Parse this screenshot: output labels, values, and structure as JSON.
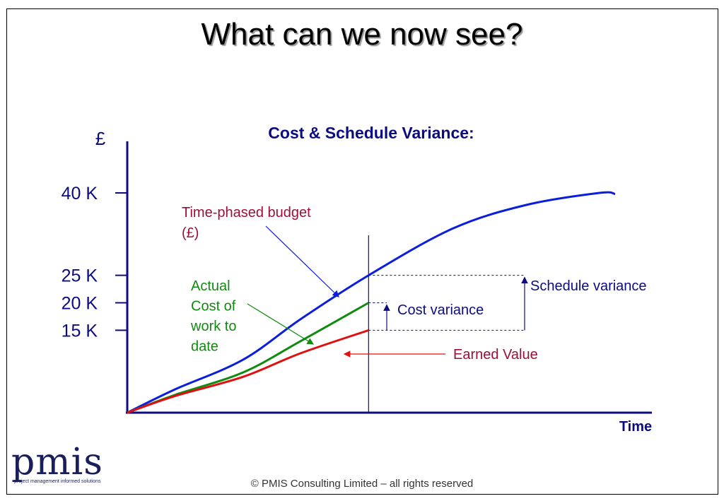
{
  "slide_title": "What can we now see?",
  "footer": "© PMIS Consulting Limited – all rights reserved",
  "logo": {
    "word": "pmis",
    "tagline": "project management informed solutions"
  },
  "colors": {
    "budget": "#0a1edc",
    "actual": "#118a11",
    "earned": "#e01010",
    "axis": "#0c0c80",
    "annotation": "#0c0c80",
    "budget_label": "#9b1038"
  },
  "chart_data": {
    "type": "line",
    "title": "Cost & Schedule Variance:",
    "ylabel": "£",
    "xlabel": "Time",
    "yticks": [
      {
        "value": 15,
        "label": "15 K"
      },
      {
        "value": 20,
        "label": "20 K"
      },
      {
        "value": 25,
        "label": "25 K"
      },
      {
        "value": 40,
        "label": "40 K"
      }
    ],
    "ylim": [
      0,
      40
    ],
    "grid": false,
    "now_marker": {
      "x": 0.46
    },
    "series": [
      {
        "name": "Time-phased budget (£)",
        "label_lines": [
          "Time-phased budget",
          "(£)"
        ],
        "x": [
          0,
          0.09,
          0.22,
          0.33,
          0.46,
          0.62,
          0.76,
          0.9,
          0.93
        ],
        "y": [
          0,
          4.2,
          9.6,
          17,
          25,
          33.5,
          37.8,
          40,
          39.8
        ]
      },
      {
        "name": "Actual Cost of work to date",
        "label_lines": [
          "Actual",
          "Cost of",
          "work to",
          "date"
        ],
        "x": [
          0,
          0.09,
          0.22,
          0.33,
          0.46
        ],
        "y": [
          0,
          3.2,
          7.3,
          13,
          20
        ]
      },
      {
        "name": "Earned Value",
        "label_lines": [
          "Earned Value"
        ],
        "x": [
          0,
          0.09,
          0.22,
          0.33,
          0.46
        ],
        "y": [
          0,
          3,
          6.5,
          10.8,
          15
        ]
      }
    ],
    "annotations": {
      "schedule_variance": "Schedule variance",
      "cost_variance": "Cost variance"
    }
  }
}
